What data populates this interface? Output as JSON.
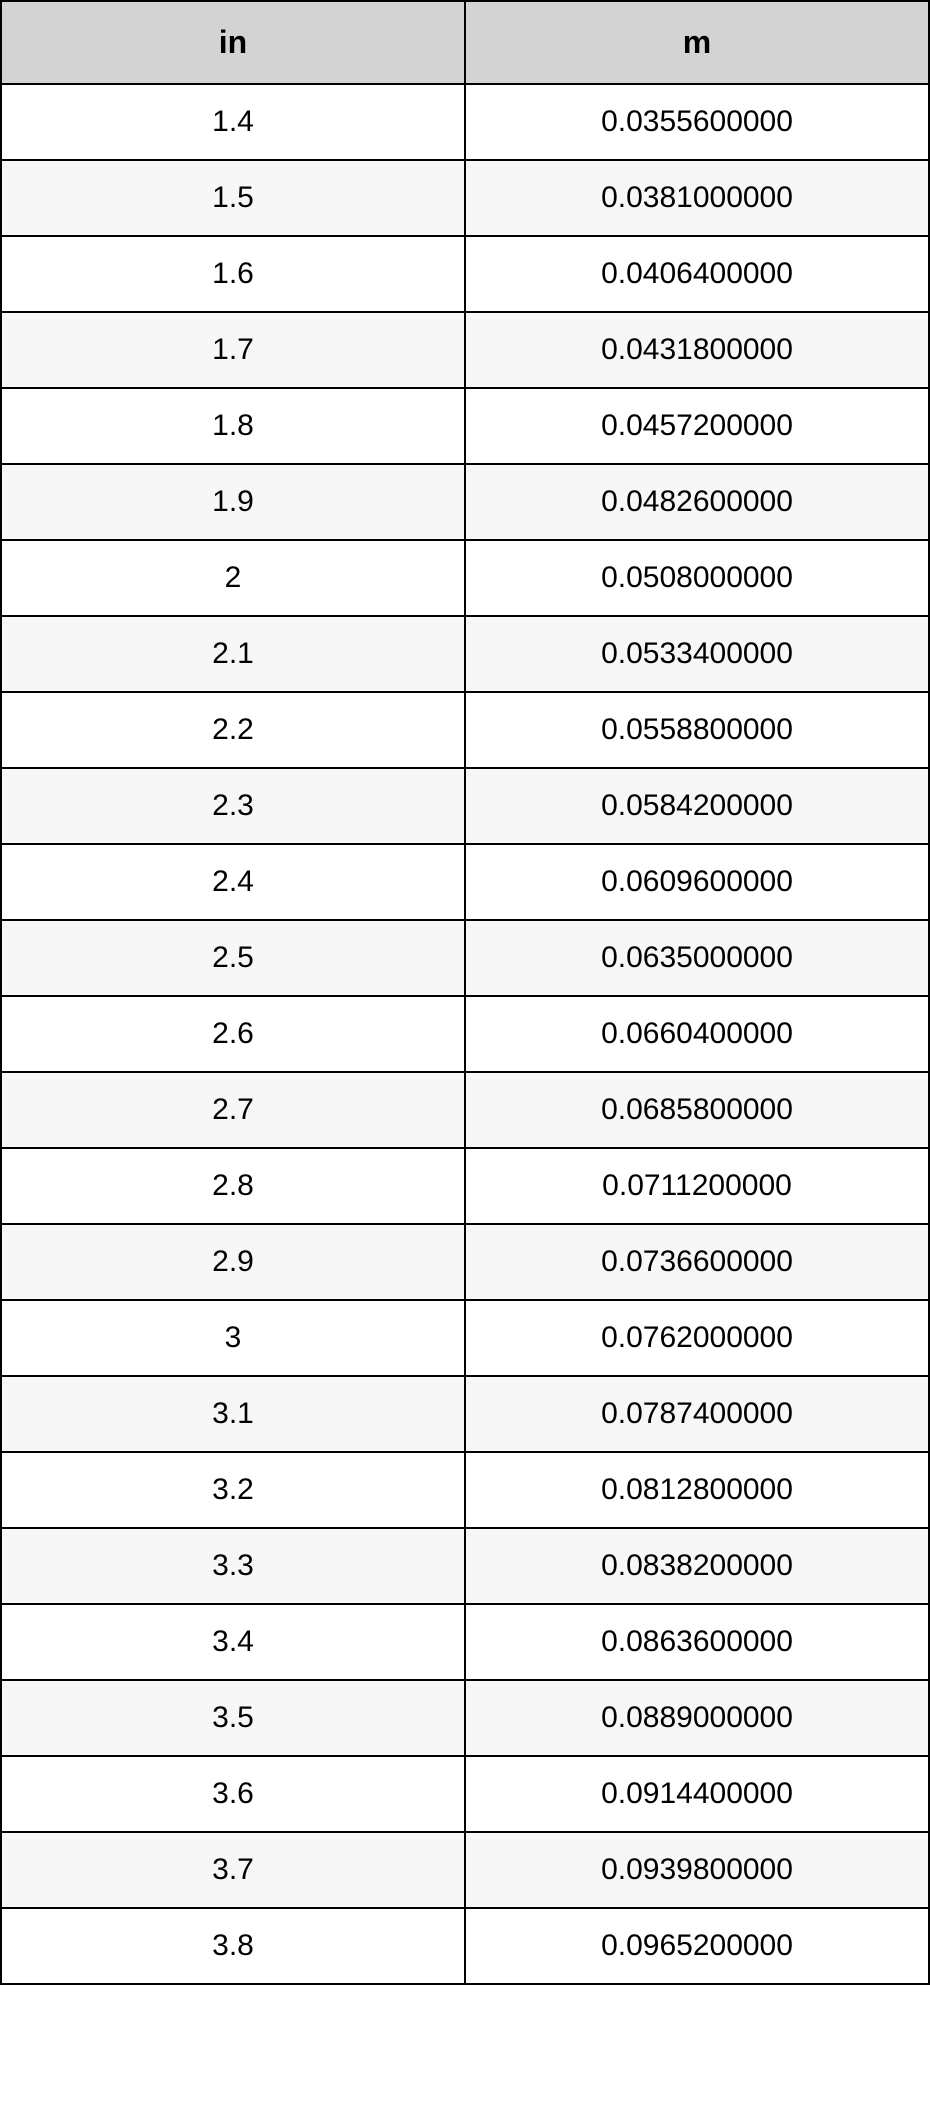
{
  "table": {
    "columns": [
      "in",
      "m"
    ],
    "rows": [
      [
        "1.4",
        "0.0355600000"
      ],
      [
        "1.5",
        "0.0381000000"
      ],
      [
        "1.6",
        "0.0406400000"
      ],
      [
        "1.7",
        "0.0431800000"
      ],
      [
        "1.8",
        "0.0457200000"
      ],
      [
        "1.9",
        "0.0482600000"
      ],
      [
        "2",
        "0.0508000000"
      ],
      [
        "2.1",
        "0.0533400000"
      ],
      [
        "2.2",
        "0.0558800000"
      ],
      [
        "2.3",
        "0.0584200000"
      ],
      [
        "2.4",
        "0.0609600000"
      ],
      [
        "2.5",
        "0.0635000000"
      ],
      [
        "2.6",
        "0.0660400000"
      ],
      [
        "2.7",
        "0.0685800000"
      ],
      [
        "2.8",
        "0.0711200000"
      ],
      [
        "2.9",
        "0.0736600000"
      ],
      [
        "3",
        "0.0762000000"
      ],
      [
        "3.1",
        "0.0787400000"
      ],
      [
        "3.2",
        "0.0812800000"
      ],
      [
        "3.3",
        "0.0838200000"
      ],
      [
        "3.4",
        "0.0863600000"
      ],
      [
        "3.5",
        "0.0889000000"
      ],
      [
        "3.6",
        "0.0914400000"
      ],
      [
        "3.7",
        "0.0939800000"
      ],
      [
        "3.8",
        "0.0965200000"
      ]
    ],
    "header_bg": "#d3d3d3",
    "row_even_bg": "#f7f7f7",
    "row_odd_bg": "#ffffff",
    "border_color": "#000000",
    "header_fontsize": 32,
    "cell_fontsize": 30
  }
}
